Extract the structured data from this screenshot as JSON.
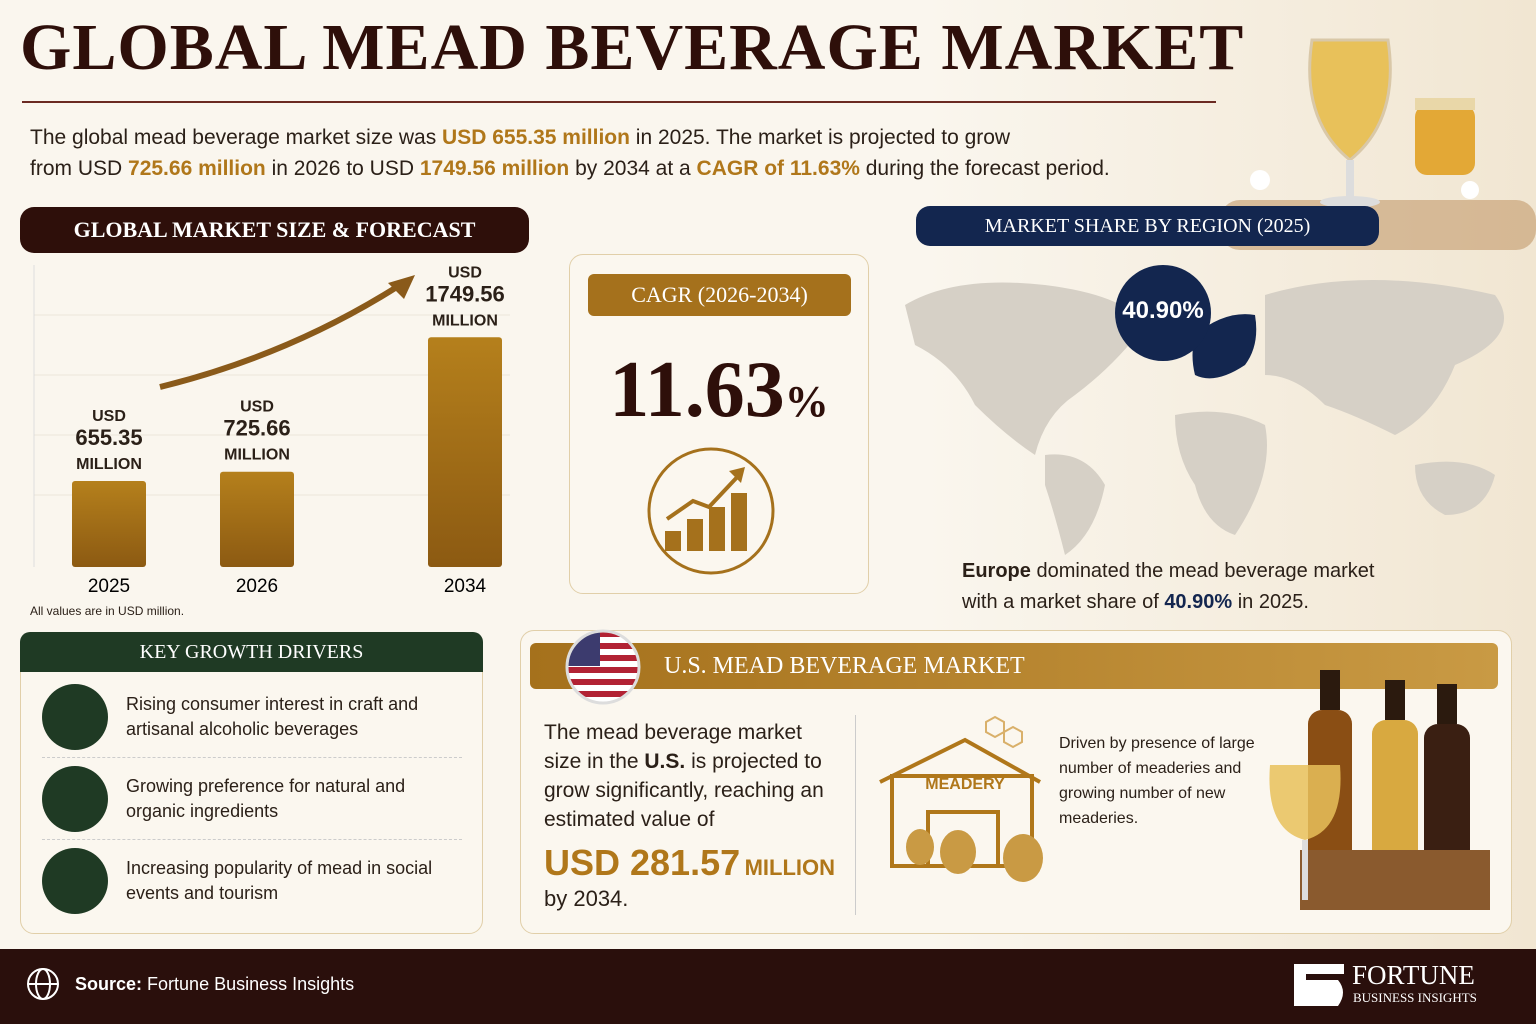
{
  "header": {
    "title": "GLOBAL MEAD BEVERAGE MARKET"
  },
  "intro": {
    "lines": [
      [
        {
          "text": "The global mead beverage market size was ",
          "style": "plain"
        },
        {
          "text": "USD 655.35 million",
          "style": "gold"
        },
        {
          "text": " in 2025. The market is projected to grow",
          "style": "plain"
        }
      ],
      [
        {
          "text": "from USD ",
          "style": "plain"
        },
        {
          "text": "725.66 million",
          "style": "gold"
        },
        {
          "text": " in 2026 to USD ",
          "style": "plain"
        },
        {
          "text": "1749.56 million",
          "style": "gold"
        },
        {
          "text": " by 2034 at a ",
          "style": "plain"
        },
        {
          "text": "CAGR of 11.63%",
          "style": "gold"
        },
        {
          "text": " during the forecast period.",
          "style": "plain"
        }
      ]
    ]
  },
  "chart_data": {
    "type": "bar",
    "title": "GLOBAL MARKET SIZE & FORECAST",
    "categories": [
      "2025",
      "2026",
      "2034"
    ],
    "values": [
      655.35,
      725.66,
      1749.56
    ],
    "value_labels": [
      "USD 655.35 MILLION",
      "USD 725.66 MILLION",
      "USD 1749.56 MILLION"
    ],
    "color": "#b5801c",
    "ylim": [
      0,
      2300
    ],
    "note": "All values are in USD million."
  },
  "cagr": {
    "title": "CAGR (2026-2034)",
    "value": "11.63",
    "unit": "%"
  },
  "region": {
    "title": "MARKET SHARE BY REGION (2025)",
    "badge": "40.90%",
    "lines": [
      [
        {
          "text": "Europe",
          "style": "bold"
        },
        {
          "text": " dominated the mead beverage market",
          "style": "plain"
        }
      ],
      [
        {
          "text": "with a market share of ",
          "style": "plain"
        },
        {
          "text": "40.90%",
          "style": "navy"
        },
        {
          "text": " in 2025.",
          "style": "plain"
        }
      ]
    ]
  },
  "drivers": {
    "title": "KEY GROWTH DRIVERS",
    "items": [
      "Rising consumer interest in craft and artisanal alcoholic beverages",
      "Growing preference for natural and organic ingredients",
      "Increasing popularity of mead in social events and tourism"
    ]
  },
  "us": {
    "title": "U.S. MEAD BEVERAGE MARKET",
    "text": [
      {
        "text": "The mead beverage market size in the ",
        "style": "plain"
      },
      {
        "text": "U.S.",
        "style": "bold"
      },
      {
        "text": " is projected to grow significantly, reaching an estimated value of",
        "style": "plain"
      }
    ],
    "value": "USD 281.57",
    "value_unit": "MILLION",
    "tail": "by 2034.",
    "building_label": "MEADERY",
    "note": "Driven by presence of large number of meaderies and growing number of new meaderies."
  },
  "footer": {
    "source_label": "Source:",
    "source": "Fortune Business Insights",
    "logo_top": "FORTUNE",
    "logo_bottom": "BUSINESS INSIGHTS"
  }
}
